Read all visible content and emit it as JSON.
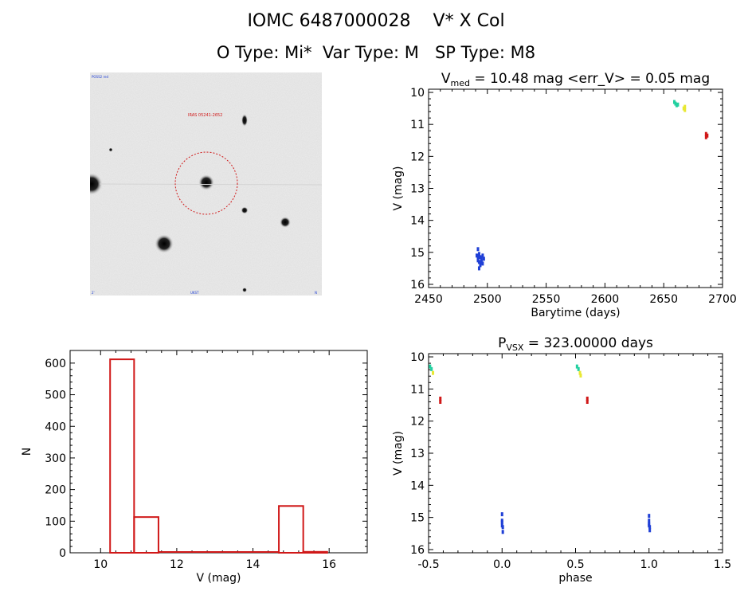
{
  "header": {
    "line1": "IOMC 6487000028    V* X Col",
    "line2": "O Type: Mi*  Var Type: M   SP Type: M8"
  },
  "finder": {
    "target_label": "IRAS 05241-2652",
    "corner_tl": "POSS2 red",
    "corner_bl": "2'",
    "corner_br": "N",
    "bottom_label": "UKST"
  },
  "chart_data": [
    {
      "id": "lightcurve",
      "type": "scatter",
      "title": "V_med = 10.48 mag <err_V> = 0.05 mag",
      "title_parts": {
        "main": "V",
        "sub": "med",
        "rest": " = 10.48 mag <err_V> = 0.05 mag"
      },
      "xlabel": "Barytime (days)",
      "ylabel": "V (mag)",
      "xlim": [
        2450,
        2700
      ],
      "ylim": [
        16.1,
        9.9
      ],
      "y_inverted": true,
      "xticks": [
        2450,
        2500,
        2550,
        2600,
        2650,
        2700
      ],
      "yticks": [
        10,
        11,
        12,
        13,
        14,
        15,
        16
      ],
      "series": [
        {
          "color": "#1f3fd6",
          "points": [
            [
              2491,
              15.1
            ],
            [
              2492,
              15.25
            ],
            [
              2492,
              14.9
            ],
            [
              2493,
              15.3
            ],
            [
              2493,
              15.05
            ],
            [
              2494,
              15.4
            ],
            [
              2494,
              15.15
            ],
            [
              2495,
              15.2
            ],
            [
              2495,
              15.3
            ],
            [
              2496,
              15.1
            ],
            [
              2496,
              15.35
            ],
            [
              2497,
              15.2
            ],
            [
              2493,
              15.5
            ],
            [
              2492,
              15.15
            ]
          ]
        },
        {
          "color": "#22d0a0",
          "points": [
            [
              2659,
              10.3
            ],
            [
              2660,
              10.35
            ],
            [
              2661,
              10.4
            ],
            [
              2662,
              10.38
            ]
          ]
        },
        {
          "color": "#e8e832",
          "points": [
            [
              2667,
              10.5
            ],
            [
              2668,
              10.55
            ],
            [
              2668,
              10.45
            ]
          ]
        },
        {
          "color": "#d01818",
          "points": [
            [
              2686,
              11.3
            ],
            [
              2686,
              11.4
            ],
            [
              2687,
              11.35
            ]
          ]
        }
      ]
    },
    {
      "id": "histogram",
      "type": "bar",
      "title": "",
      "xlabel": "V (mag)",
      "ylabel": "N",
      "xlim": [
        9.2,
        17.0
      ],
      "ylim": [
        0,
        640
      ],
      "xticks": [
        10,
        12,
        14,
        16
      ],
      "yticks": [
        0,
        100,
        200,
        300,
        400,
        500,
        600
      ],
      "bin_edges": [
        10.25,
        10.88,
        11.52,
        12.15,
        12.78,
        13.42,
        14.05,
        14.68,
        15.32,
        15.95
      ],
      "counts": [
        612,
        113,
        0,
        0,
        0,
        0,
        0,
        148,
        3
      ],
      "color": "#d01818"
    },
    {
      "id": "phased",
      "type": "scatter",
      "title": "P_VSX = 323.00000 days",
      "title_parts": {
        "main": "P",
        "sub": "VSX",
        "rest": " = 323.00000 days"
      },
      "xlabel": "phase",
      "ylabel": "V (mag)",
      "xlim": [
        -0.5,
        1.5
      ],
      "ylim": [
        16.1,
        9.9
      ],
      "y_inverted": true,
      "xticks": [
        -0.5,
        0.0,
        0.5,
        1.0,
        1.5
      ],
      "xtick_labels": [
        "-0.5",
        "0.0",
        "0.5",
        "1.0",
        "1.5"
      ],
      "yticks": [
        10,
        11,
        12,
        13,
        14,
        15,
        16
      ],
      "series": [
        {
          "color": "#1f3fd6",
          "points": [
            [
              0.0,
              15.1
            ],
            [
              0.0,
              15.25
            ],
            [
              0.0,
              14.9
            ],
            [
              0.005,
              15.3
            ],
            [
              0.005,
              15.45
            ],
            [
              0.0,
              15.15
            ],
            [
              1.0,
              15.1
            ],
            [
              1.0,
              15.25
            ],
            [
              1.0,
              14.95
            ],
            [
              1.005,
              15.3
            ],
            [
              1.005,
              15.4
            ],
            [
              1.0,
              15.2
            ]
          ]
        },
        {
          "color": "#22d0a0",
          "points": [
            [
              -0.49,
              10.3
            ],
            [
              -0.48,
              10.38
            ],
            [
              0.51,
              10.3
            ],
            [
              0.52,
              10.38
            ]
          ]
        },
        {
          "color": "#e8e832",
          "points": [
            [
              -0.47,
              10.5
            ],
            [
              0.53,
              10.5
            ],
            [
              0.535,
              10.58
            ]
          ]
        },
        {
          "color": "#d01818",
          "points": [
            [
              -0.42,
              11.3
            ],
            [
              -0.42,
              11.4
            ],
            [
              0.58,
              11.3
            ],
            [
              0.58,
              11.4
            ]
          ]
        }
      ]
    }
  ]
}
